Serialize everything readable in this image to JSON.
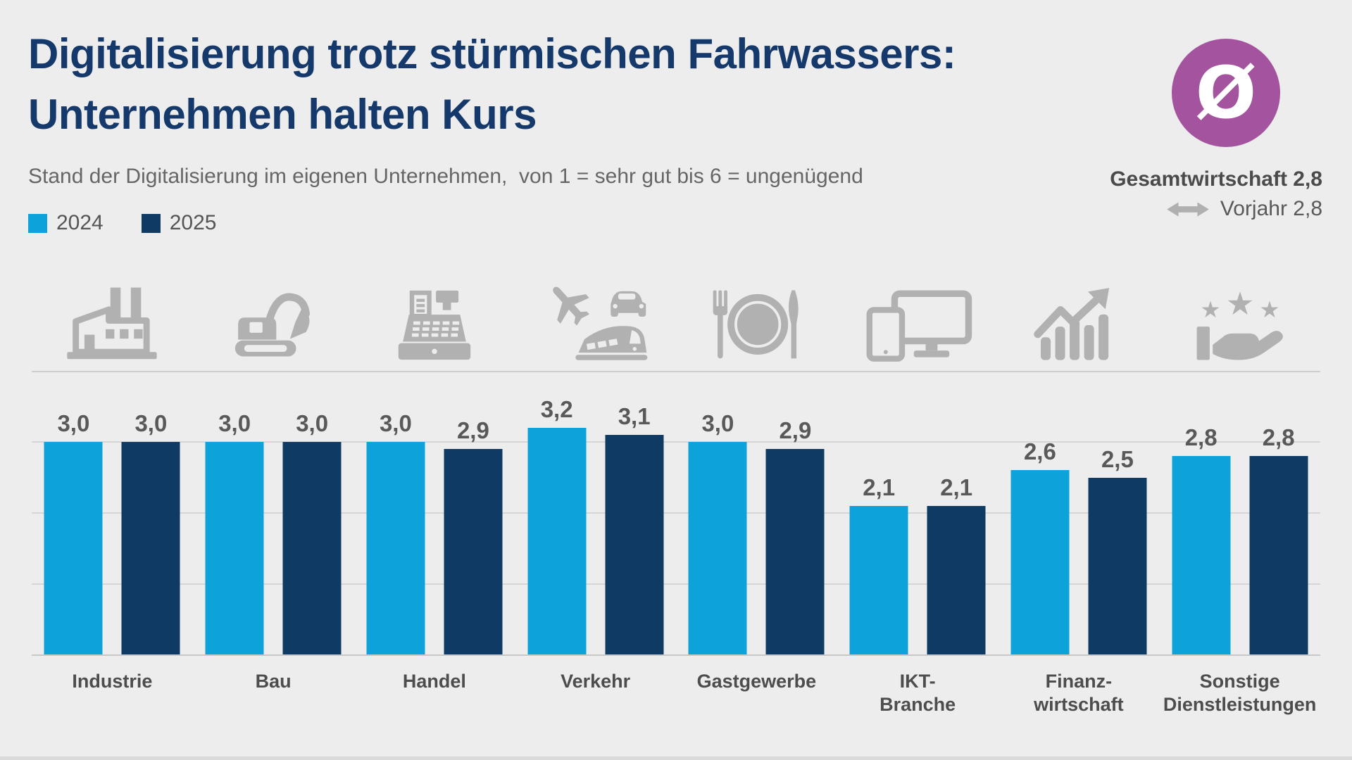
{
  "header": {
    "title_line1": "Digitalisierung trotz stürmischen Fahrwassers:",
    "title_line2": "Unternehmen halten Kurs",
    "subtitle": "Stand der Digitalisierung im eigenen Unternehmen,  von 1 = sehr gut bis 6 = ungenügend"
  },
  "legend": {
    "items": [
      {
        "label": "2024",
        "color": "#0ea2db"
      },
      {
        "label": "2025",
        "color": "#0f3a63"
      }
    ]
  },
  "average": {
    "symbol": "Ø",
    "circle_color": "#a4549e",
    "primary": "Gesamtwirtschaft 2,8",
    "secondary": "Vorjahr 2,8",
    "arrow_icon": "left-right-arrow-icon"
  },
  "chart_data": {
    "type": "bar",
    "title": "Digitalisierung trotz stürmischen Fahrwassers: Unternehmen halten Kurs",
    "subtitle": "Stand der Digitalisierung im eigenen Unternehmen, von 1 = sehr gut bis 6 = ungenügend",
    "xlabel": "",
    "ylabel": "",
    "ylim": [
      0,
      3.5
    ],
    "grid": true,
    "gridline_values": [
      1,
      2,
      3
    ],
    "legend_position": "top-left",
    "categories": [
      "Industrie",
      "Bau",
      "Handel",
      "Verkehr",
      "Gastgewerbe",
      "IKT-Branche",
      "Finanzwirtschaft",
      "Sonstige Dienstleistungen"
    ],
    "category_label_lines": [
      [
        "Industrie"
      ],
      [
        "Bau"
      ],
      [
        "Handel"
      ],
      [
        "Verkehr"
      ],
      [
        "Gastgewerbe"
      ],
      [
        "IKT-",
        "Branche"
      ],
      [
        "Finanz-",
        "wirtschaft"
      ],
      [
        "Sonstige",
        "Dienstleistungen"
      ]
    ],
    "category_icons": [
      "factory-icon",
      "excavator-icon",
      "cash-register-icon",
      "transport-icon",
      "restaurant-icon",
      "devices-icon",
      "growth-chart-icon",
      "hand-stars-icon"
    ],
    "series": [
      {
        "name": "2024",
        "color": "#0ea2db",
        "values": [
          3.0,
          3.0,
          3.0,
          3.2,
          3.0,
          2.1,
          2.6,
          2.8
        ],
        "labels": [
          "3,0",
          "3,0",
          "3,0",
          "3,2",
          "3,0",
          "2,1",
          "2,6",
          "2,8"
        ]
      },
      {
        "name": "2025",
        "color": "#0f3a63",
        "values": [
          3.0,
          3.0,
          2.9,
          3.1,
          2.9,
          2.1,
          2.5,
          2.8
        ],
        "labels": [
          "3,0",
          "3,0",
          "2,9",
          "3,1",
          "2,9",
          "2,1",
          "2,5",
          "2,8"
        ]
      }
    ]
  }
}
